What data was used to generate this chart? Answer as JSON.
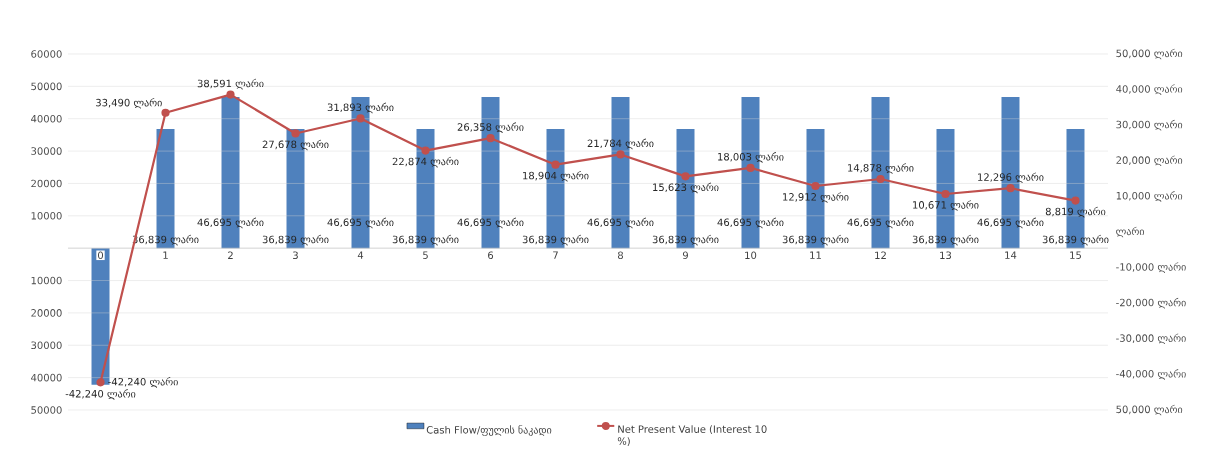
{
  "chart_data": {
    "type": "bar",
    "categories": [
      "0",
      "1",
      "2",
      "3",
      "4",
      "5",
      "6",
      "7",
      "8",
      "9",
      "10",
      "11",
      "12",
      "13",
      "14",
      "15"
    ],
    "series": [
      {
        "name": "Cash Flow/ფულის ნაკადი",
        "color": "#4f81bd",
        "values": [
          -42240,
          36839,
          46695,
          36839,
          46695,
          36839,
          46695,
          36839,
          46695,
          36839,
          46695,
          36839,
          46695,
          36839,
          46695,
          36839
        ],
        "value_labels": [
          "-42,240 ლარი",
          "36,839 ლარი",
          "46,695 ლარი",
          "36,839 ლარი",
          "46,695 ლარი",
          "36,839 ლარი",
          "46,695 ლარი",
          "36,839 ლარი",
          "46,695 ლარი",
          "36,839 ლარი",
          "46,695 ლარი",
          "36,839 ლარი",
          "46,695 ლარი",
          "36,839 ლარი",
          "46,695 ლარი",
          "36,839 ლარი"
        ]
      },
      {
        "name": "Net Present Value (Interest 10 %)",
        "type": "line",
        "axis": "y2",
        "color": "#c0504d",
        "values": [
          -42240,
          33490,
          38591,
          27678,
          31893,
          22874,
          26358,
          18904,
          21784,
          15623,
          18003,
          12912,
          14878,
          10671,
          12296,
          8819
        ],
        "value_labels": [
          "-42,240 ლარი",
          "33,490 ლარი",
          "38,591 ლარი",
          "27,678 ლარი",
          "31,893 ლარი",
          "22,874 ლარი",
          "26,358 ლარი",
          "18,904 ლარი",
          "21,784 ლარი",
          "15,623 ლარი",
          "18,003 ლარი",
          "12,912 ლარი",
          "14,878 ლარი",
          "10,671 ლარი",
          "12,296 ლარი",
          "8,819 ლარი"
        ]
      }
    ],
    "ylim": [
      -50000,
      60000
    ],
    "yticks": [
      {
        "value": -50000,
        "label": "50000"
      },
      {
        "value": -40000,
        "label": "40000"
      },
      {
        "value": -30000,
        "label": "30000"
      },
      {
        "value": -20000,
        "label": "20000"
      },
      {
        "value": -10000,
        "label": "10000"
      },
      {
        "value": 0,
        "label": null
      },
      10000,
      20000,
      30000,
      40000,
      50000,
      60000
    ],
    "y2lim": [
      -50000,
      50000
    ],
    "y2ticks": [
      {
        "value": -50000,
        "label": "50,000 ლარი"
      },
      {
        "value": -40000,
        "label": "-40,000 ლარი"
      },
      {
        "value": -30000,
        "label": "-30,000 ლარი"
      },
      {
        "value": -20000,
        "label": "-20,000 ლარი"
      },
      {
        "value": -10000,
        "label": "-10,000 ლარი"
      },
      {
        "value": 0,
        "label": "ლარი"
      },
      {
        "value": 10000,
        "label": "10,000 ლარი"
      },
      {
        "value": 20000,
        "label": "20,000 ლარი"
      },
      {
        "value": 30000,
        "label": "30,000 ლარი"
      },
      {
        "value": 40000,
        "label": "40,000 ლარი"
      },
      {
        "value": 50000,
        "label": "50,000 ლარი"
      }
    ],
    "grid": "y",
    "legend": "bottom",
    "marker": "circle"
  }
}
